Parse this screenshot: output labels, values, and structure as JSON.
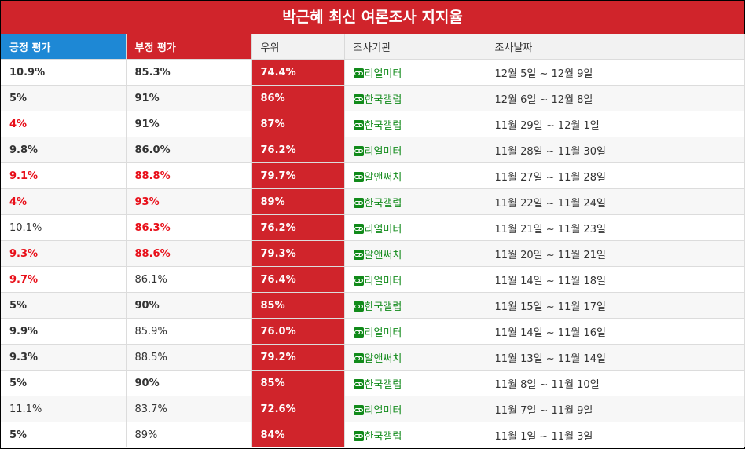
{
  "title": "박근혜 최신 여론조사 지지율",
  "headers": {
    "positive": "긍정 평가",
    "negative": "부정 평가",
    "lead": "우위",
    "organization": "조사기관",
    "date": "조사날짜"
  },
  "colors": {
    "brand_red": "#d0242b",
    "positive_blue": "#1e88d5",
    "highlight_red_text": "#e8101a",
    "org_green": "#118a1a"
  },
  "rows": [
    {
      "positive": "10.9%",
      "negative": "85.3%",
      "lead": "74.4%",
      "organization": "리얼미터",
      "date": "12월 5일 ~ 12월 9일"
    },
    {
      "positive": "5%",
      "negative": "91%",
      "lead": "86%",
      "organization": "한국갤럽",
      "date": "12월 6일 ~ 12월 8일"
    },
    {
      "positive": "4%",
      "negative": "91%",
      "lead": "87%",
      "organization": "한국갤럽",
      "date": "11월 29일 ~ 12월 1일"
    },
    {
      "positive": "9.8%",
      "negative": "86.0%",
      "lead": "76.2%",
      "organization": "리얼미터",
      "date": "11월 28일 ~ 11월 30일"
    },
    {
      "positive": "9.1%",
      "negative": "88.8%",
      "lead": "79.7%",
      "organization": "알앤써치",
      "date": "11월 27일 ~ 11월 28일"
    },
    {
      "positive": "4%",
      "negative": "93%",
      "lead": "89%",
      "organization": "한국갤럽",
      "date": "11월 22일 ~ 11월 24일"
    },
    {
      "positive": "10.1%",
      "negative": "86.3%",
      "lead": "76.2%",
      "organization": "리얼미터",
      "date": "11월 21일 ~ 11월 23일"
    },
    {
      "positive": "9.3%",
      "negative": "88.6%",
      "lead": "79.3%",
      "organization": "알앤써치",
      "date": "11월 20일 ~ 11월 21일"
    },
    {
      "positive": "9.7%",
      "negative": "86.1%",
      "lead": "76.4%",
      "organization": "리얼미터",
      "date": "11월 14일 ~ 11월 18일"
    },
    {
      "positive": "5%",
      "negative": "90%",
      "lead": "85%",
      "organization": "한국갤럽",
      "date": "11월 15일 ~ 11월 17일"
    },
    {
      "positive": "9.9%",
      "negative": "85.9%",
      "lead": "76.0%",
      "organization": "리얼미터",
      "date": "11월 14일 ~ 11월 16일"
    },
    {
      "positive": "9.3%",
      "negative": "88.5%",
      "lead": "79.2%",
      "organization": "알앤써치",
      "date": "11월 13일 ~ 11월 14일"
    },
    {
      "positive": "5%",
      "negative": "90%",
      "lead": "85%",
      "organization": "한국갤럽",
      "date": "11월 8일 ~ 11월 10일"
    },
    {
      "positive": "11.1%",
      "negative": "83.7%",
      "lead": "72.6%",
      "organization": "리얼미터",
      "date": "11월 7일 ~ 11월 9일"
    },
    {
      "positive": "5%",
      "negative": "89%",
      "lead": "84%",
      "organization": "한국갤럽",
      "date": "11월 1일 ~ 11월 3일"
    }
  ]
}
